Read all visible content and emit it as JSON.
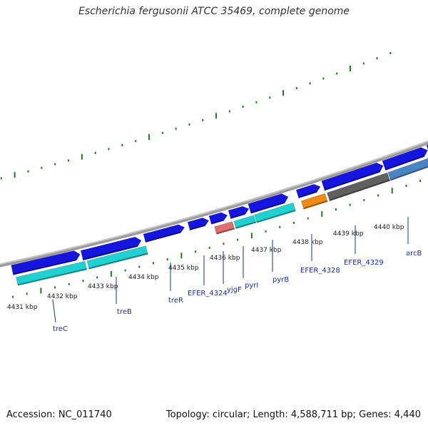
{
  "title": "Escherichia fergusonii ATCC 35469, complete genome",
  "footer": {
    "accession": "Accession: NC_011740",
    "summary": "Topology: circular; Length: 4,588,711 bp; Genes: 4,440"
  },
  "colors": {
    "backbone": "#888888",
    "forward_gene": "#1515e0",
    "reverse_gene": "#1fd2d2",
    "pink_gene": "#e06d70",
    "orange_gene": "#f08a10",
    "grey_gene": "#606060",
    "steel_gene": "#4a84c4",
    "ticks": "#1f7a1f",
    "label": "#1a2bb0"
  },
  "ticks": [
    {
      "label": "4431 kbp"
    },
    {
      "label": "4432 kbp"
    },
    {
      "label": "4433 kbp"
    },
    {
      "label": "4434 kbp"
    },
    {
      "label": "4435 kbp"
    },
    {
      "label": "4436 kbp"
    },
    {
      "label": "4437 kbp"
    },
    {
      "label": "4438 kbp"
    },
    {
      "label": "4439 kbp"
    },
    {
      "label": "4440 kbp"
    }
  ],
  "gene_labels": [
    {
      "text": "treC"
    },
    {
      "text": "treB"
    },
    {
      "text": "treR"
    },
    {
      "text": "EFER_4324"
    },
    {
      "text": "yjgF"
    },
    {
      "text": "pyrI"
    },
    {
      "text": "pyrB"
    },
    {
      "text": "EFER_4328"
    },
    {
      "text": "EFER_4329"
    },
    {
      "text": "arcB"
    }
  ]
}
